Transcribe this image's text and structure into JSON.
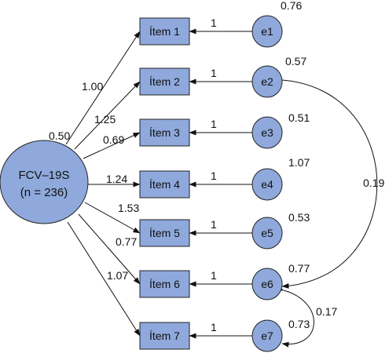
{
  "colors": {
    "node_fill": "#8fa9dc",
    "stroke": "#222222",
    "text": "#111111"
  },
  "factor": {
    "line1": "FCV–19S",
    "line2": "(n = 236)",
    "variance": "0.50"
  },
  "items": [
    {
      "label": "Ítem 1",
      "loading": "1.00",
      "error": "e1",
      "path": "1",
      "error_variance": "0.76"
    },
    {
      "label": "Ítem 2",
      "loading": "1.25",
      "error": "e2",
      "path": "1",
      "error_variance": "0.57"
    },
    {
      "label": "Ítem 3",
      "loading": "0.69",
      "error": "e3",
      "path": "1",
      "error_variance": "0.51"
    },
    {
      "label": "Ítem 4",
      "loading": "1.24",
      "error": "e4",
      "path": "1",
      "error_variance": "1.07"
    },
    {
      "label": "Ítem 5",
      "loading": "1.53",
      "error": "e5",
      "path": "1",
      "error_variance": "0.53"
    },
    {
      "label": "Ítem 6",
      "loading": "0.77",
      "error": "e6",
      "path": "1",
      "error_variance": "0.77"
    },
    {
      "label": "Ítem 7",
      "loading": "1.07",
      "error": "e7",
      "path": "1",
      "error_variance": "0.73"
    }
  ],
  "covariances": [
    {
      "from": "e2",
      "to": "e6",
      "value": "0.19"
    },
    {
      "from": "e6",
      "to": "e7",
      "value": "0.17"
    }
  ]
}
